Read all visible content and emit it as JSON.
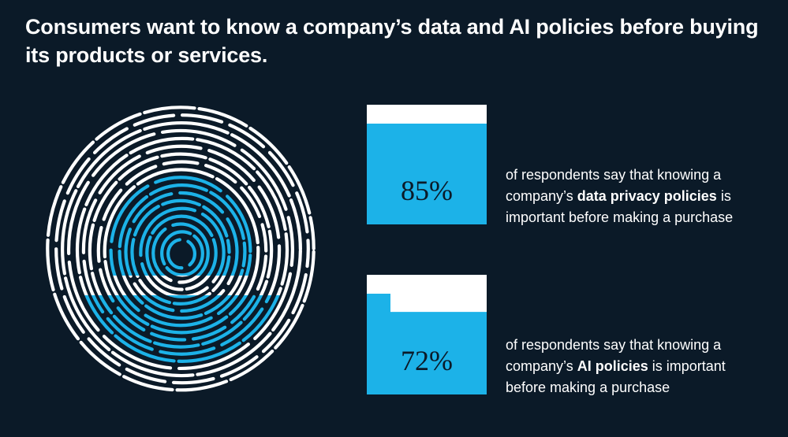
{
  "title": "Consumers want to know a company’s data and AI policies before buying its products or services.",
  "colors": {
    "background": "#0b1a28",
    "accent": "#1cb2e8",
    "fill_empty": "#ffffff",
    "fingerprint_white": "#ffffff"
  },
  "icons": {
    "fingerprint": "fingerprint-icon"
  },
  "chart_data": {
    "type": "bar",
    "categories": [
      "data privacy policies",
      "AI policies"
    ],
    "values": [
      85,
      72
    ],
    "unit": "%",
    "ylim": [
      0,
      100
    ]
  },
  "stats": [
    {
      "value": 85,
      "label": "85%",
      "text_before": "of respondents say that knowing a company’s ",
      "highlight": "data privacy policies",
      "text_after": " is important before making a purchase"
    },
    {
      "value": 72,
      "label": "72%",
      "text_before": "of respondents say that knowing a company’s ",
      "highlight": "AI policies",
      "text_after": " is important before making a purchase"
    }
  ]
}
